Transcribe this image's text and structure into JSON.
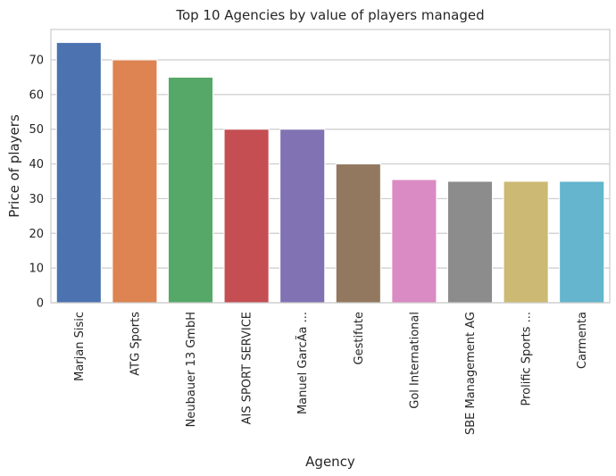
{
  "chart_data": {
    "type": "bar",
    "title": "Top 10 Agencies by value of players managed",
    "xlabel": "Agency",
    "ylabel": "Price of players",
    "categories": [
      "Marjan Sisic",
      "ATG Sports",
      "Neubauer 13 GmbH",
      "AIS SPORT SERVICE",
      "Manuel GarcÃ­a ...",
      "Gestifute",
      "Gol International",
      "SBE Management AG",
      "Prolific Sports ...",
      "Carmenta"
    ],
    "values": [
      75,
      70,
      65,
      50,
      50,
      40,
      35.5,
      35,
      35,
      35
    ],
    "colors": [
      "#4c72b0",
      "#dd8452",
      "#55a868",
      "#c44e52",
      "#8172b3",
      "#937860",
      "#da8bc3",
      "#8c8c8c",
      "#ccb974",
      "#64b5cd"
    ],
    "yticks": [
      0,
      10,
      20,
      30,
      40,
      50,
      60,
      70
    ],
    "ylim": [
      0,
      78.75
    ],
    "grid": true,
    "legend": "none"
  }
}
